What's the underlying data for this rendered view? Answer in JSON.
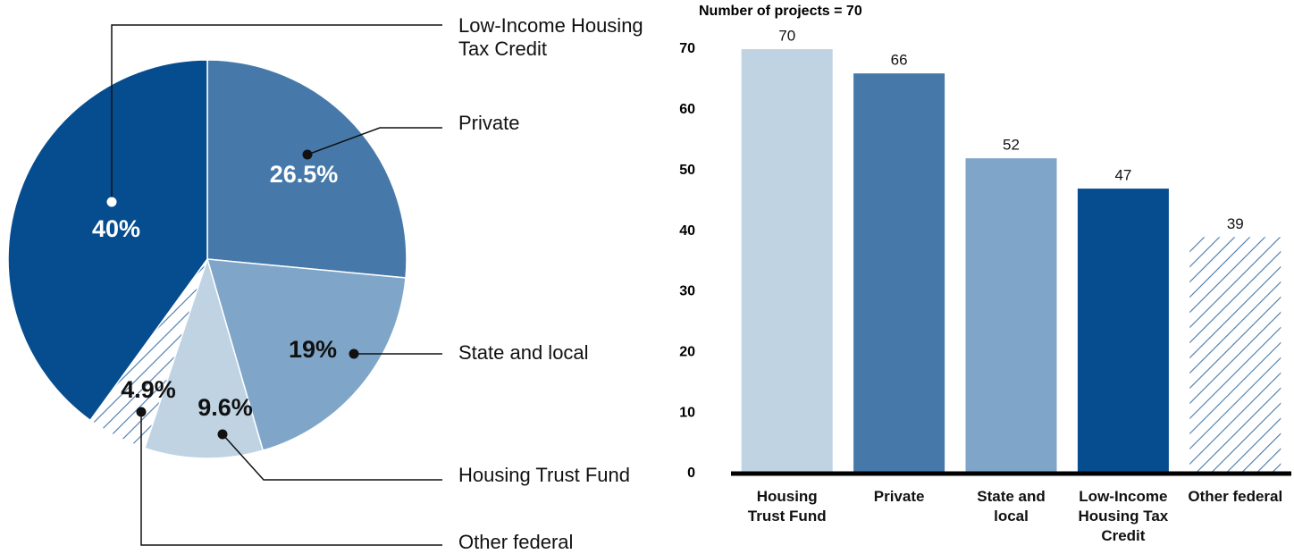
{
  "chart_data": [
    {
      "type": "pie",
      "categories": [
        "Private",
        "State and local",
        "Housing Trust Fund",
        "Other federal",
        "Low-Income Housing Tax Credit"
      ],
      "values": [
        26.5,
        19,
        9.6,
        4.9,
        40
      ],
      "value_labels": [
        "26.5%",
        "19%",
        "9.6%",
        "4.9%",
        "40%"
      ],
      "colors": [
        "#4679aa",
        "#7fa6c9",
        "#bfd3e3",
        "#4679aa",
        "#064d8f"
      ],
      "hatch": [
        false,
        false,
        false,
        true,
        false
      ]
    },
    {
      "type": "bar",
      "title": "Number of projects = 70",
      "categories": [
        "Housing Trust Fund",
        "Private",
        "State and local",
        "Low-Income Housing Tax Credit",
        "Other federal"
      ],
      "values": [
        70,
        66,
        52,
        47,
        39
      ],
      "colors": [
        "#bfd3e3",
        "#4679aa",
        "#7fa6c9",
        "#064d8f",
        "#4679aa"
      ],
      "hatch": [
        false,
        false,
        false,
        false,
        true
      ],
      "ylim": [
        0,
        70
      ],
      "yticks": [
        0,
        10,
        20,
        30,
        40,
        50,
        60,
        70
      ]
    }
  ]
}
